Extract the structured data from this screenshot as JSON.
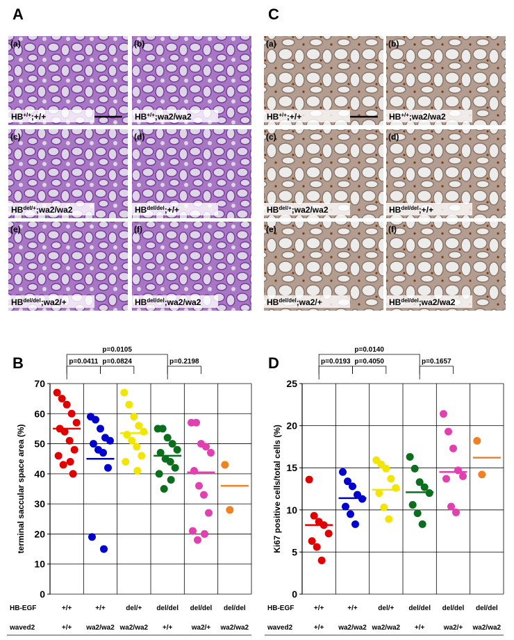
{
  "panels": [
    {
      "letter": "A",
      "images": [
        {
          "tag": "(a)",
          "genotype": [
            "HB",
            "+/+",
            ";+/+"
          ]
        },
        {
          "tag": "(b)",
          "genotype": [
            "HB",
            "+/+",
            ";wa2/wa2"
          ]
        },
        {
          "tag": "(c)",
          "genotype": [
            "HB",
            "del/+",
            ";wa2/wa2"
          ]
        },
        {
          "tag": "(d)",
          "genotype": [
            "HB",
            "del/del",
            ";+/+"
          ]
        },
        {
          "tag": "(e)",
          "genotype": [
            "HB",
            "del/del",
            ";wa2/+"
          ]
        },
        {
          "tag": "(f)",
          "genotype": [
            "HB",
            "del/del",
            ";wa2/wa2"
          ]
        }
      ]
    },
    {
      "letter": "C",
      "images": [
        {
          "tag": "(a)",
          "genotype": [
            "HB",
            "+/+",
            ";+/+"
          ]
        },
        {
          "tag": "(b)",
          "genotype": [
            "HB",
            "+/+",
            ";wa2/wa2"
          ]
        },
        {
          "tag": "(c)",
          "genotype": [
            "HB",
            "del/+",
            ";wa2/wa2"
          ]
        },
        {
          "tag": "(d)",
          "genotype": [
            "HB",
            "del/del",
            ";+/+"
          ]
        },
        {
          "tag": "(e)",
          "genotype": [
            "HB",
            "del/del",
            ";wa2/+"
          ]
        },
        {
          "tag": "(f)",
          "genotype": [
            "HB",
            "del/del",
            ";wa2/wa2"
          ]
        }
      ]
    }
  ],
  "chart_data": [
    {
      "type": "strip",
      "label": "B",
      "y_label": "terminal saccular space area (%)",
      "ylim": [
        0,
        70
      ],
      "yticks": [
        0,
        10,
        20,
        30,
        40,
        50,
        60,
        70
      ],
      "grid": true,
      "category_rows": [
        {
          "name": "HB-EGF",
          "labels": [
            "+/+",
            "+/+",
            "del/+",
            "del/del",
            "del/del",
            "del/del"
          ]
        },
        {
          "name": "waved2",
          "labels": [
            "+/+",
            "wa2/wa2",
            "wa2/wa2",
            "+/+",
            "wa2/+",
            "wa2/wa2"
          ]
        }
      ],
      "series": [
        {
          "color": "#e00000",
          "values": [
            67,
            65,
            63,
            60,
            57,
            55,
            54,
            51,
            48,
            46,
            44,
            43,
            40
          ],
          "mean": 55
        },
        {
          "color": "#0000d0",
          "values": [
            59,
            58,
            55,
            52,
            51,
            50,
            48,
            47,
            42,
            19,
            15
          ],
          "mean": 45
        },
        {
          "color": "#f2e600",
          "values": [
            67,
            63,
            59,
            56,
            54,
            53,
            51,
            49,
            46,
            44,
            41
          ],
          "mean": 53.5
        },
        {
          "color": "#0a6e1c",
          "values": [
            55,
            55,
            52,
            50,
            48,
            47,
            45,
            44,
            42,
            40,
            38,
            35
          ],
          "mean": 46
        },
        {
          "color": "#e040b0",
          "values": [
            57,
            57,
            50,
            49,
            47,
            41,
            36,
            33,
            27,
            21,
            20,
            18
          ],
          "mean": 40.5
        },
        {
          "color": "#f08020",
          "values": [
            43,
            28
          ],
          "mean": 36
        }
      ],
      "comparisons": [
        {
          "label": "p=0.0411",
          "groups": [
            0,
            1
          ]
        },
        {
          "label": "p=0.0824",
          "groups": [
            1,
            2
          ]
        },
        {
          "label": "p=0.0105",
          "groups": [
            0,
            3
          ]
        },
        {
          "label": "p=0.2198",
          "groups": [
            3,
            4
          ]
        }
      ]
    },
    {
      "type": "strip",
      "label": "D",
      "y_label": "Ki67 positive cells/total cells (%)",
      "ylim": [
        0,
        25
      ],
      "yticks": [
        0,
        5,
        10,
        15,
        20,
        25
      ],
      "grid": true,
      "category_rows": [
        {
          "name": "HB-EGF",
          "labels": [
            "+/+",
            "+/+",
            "del/+",
            "del/del",
            "del/del",
            "del/del"
          ]
        },
        {
          "name": "waved2",
          "labels": [
            "+/+",
            "wa2/wa2",
            "wa2/wa2",
            "+/+",
            "wa2/+",
            "wa2/wa2"
          ]
        }
      ],
      "series": [
        {
          "color": "#e00000",
          "values": [
            13.6,
            9.3,
            8.6,
            8.2,
            7.2,
            6.3,
            5.6,
            4
          ],
          "mean": 8.2
        },
        {
          "color": "#0000d0",
          "values": [
            14.5,
            13.4,
            12.8,
            11.8,
            11.3,
            10.4,
            9.5,
            8.3
          ],
          "mean": 11.4
        },
        {
          "color": "#f2e600",
          "values": [
            15.9,
            15.4,
            14.9,
            13.7,
            12.6,
            12,
            10.3,
            8.9
          ],
          "mean": 12.4
        },
        {
          "color": "#0a6e1c",
          "values": [
            16.3,
            14.9,
            13.3,
            12.7,
            12,
            10.6,
            9.6,
            8.3
          ],
          "mean": 12.1
        },
        {
          "color": "#e040b0",
          "values": [
            21.4,
            19.3,
            17.3,
            14.7,
            14,
            13.7,
            10.4,
            9.7
          ],
          "mean": 14.5
        },
        {
          "color": "#f08020",
          "values": [
            18.2,
            14.2
          ],
          "mean": 16.2
        }
      ],
      "comparisons": [
        {
          "label": "p=0.0193",
          "groups": [
            0,
            1
          ]
        },
        {
          "label": "p=0.4050",
          "groups": [
            1,
            2
          ]
        },
        {
          "label": "p=0.0140",
          "groups": [
            0,
            3
          ]
        },
        {
          "label": "p=0.1657",
          "groups": [
            3,
            4
          ]
        }
      ]
    }
  ]
}
